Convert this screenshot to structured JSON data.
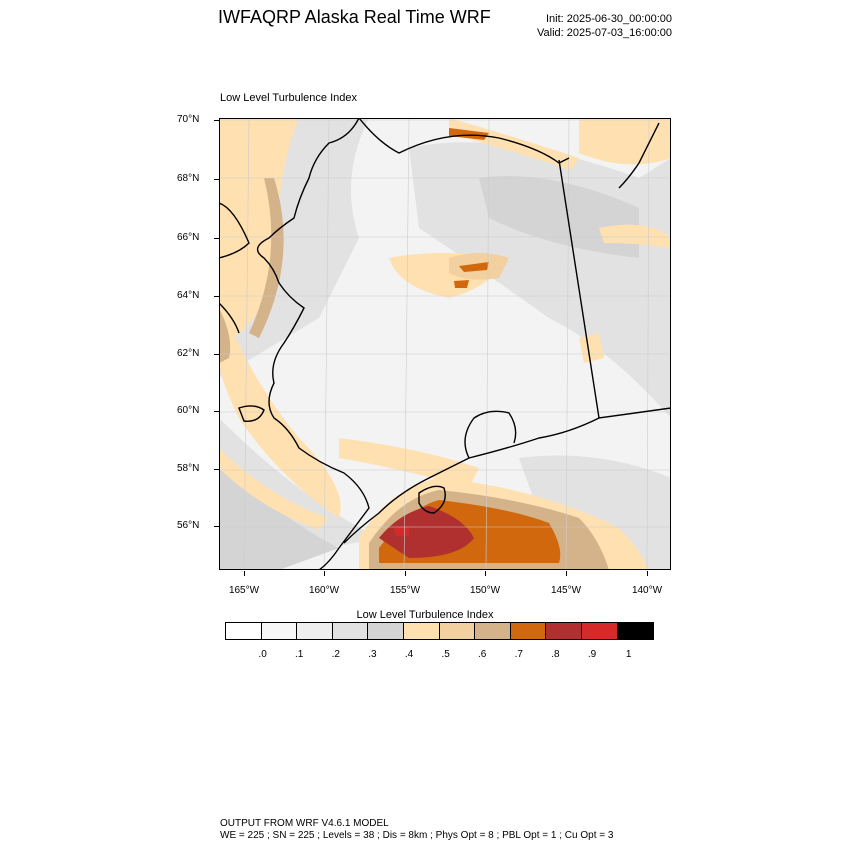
{
  "header": {
    "title": "IWFAQRP Alaska Real Time WRF",
    "init": "Init: 2025-06-30_00:00:00",
    "valid": "Valid: 2025-07-03_16:00:00"
  },
  "map": {
    "plot_title": "Low Level Turbulence Index",
    "lat_labels": [
      "70°N",
      "68°N",
      "66°N",
      "64°N",
      "62°N",
      "60°N",
      "58°N",
      "56°N"
    ],
    "lon_labels": [
      "165°W",
      "160°W",
      "155°W",
      "150°W",
      "145°W",
      "140°W"
    ]
  },
  "colorbar": {
    "title": "Low Level Turbulence Index",
    "colors": [
      "#ffffff",
      "#f7f7f7",
      "#efefef",
      "#e2e2e2",
      "#d4d4d4",
      "#ffe0b0",
      "#f2d0a0",
      "#d4b28a",
      "#d2680e",
      "#b0302f",
      "#d62a2a",
      "#000000"
    ],
    "labels": [
      ".0",
      ".1",
      ".2",
      ".3",
      ".4",
      ".5",
      ".6",
      ".7",
      ".8",
      ".9",
      "1"
    ]
  },
  "footer": {
    "line1": "OUTPUT FROM WRF V4.6.1 MODEL",
    "line2": "WE = 225 ; SN = 225 ; Levels = 38 ; Dis = 8km ; Phys Opt = 8 ; PBL Opt = 1 ; Cu Opt = 3"
  }
}
